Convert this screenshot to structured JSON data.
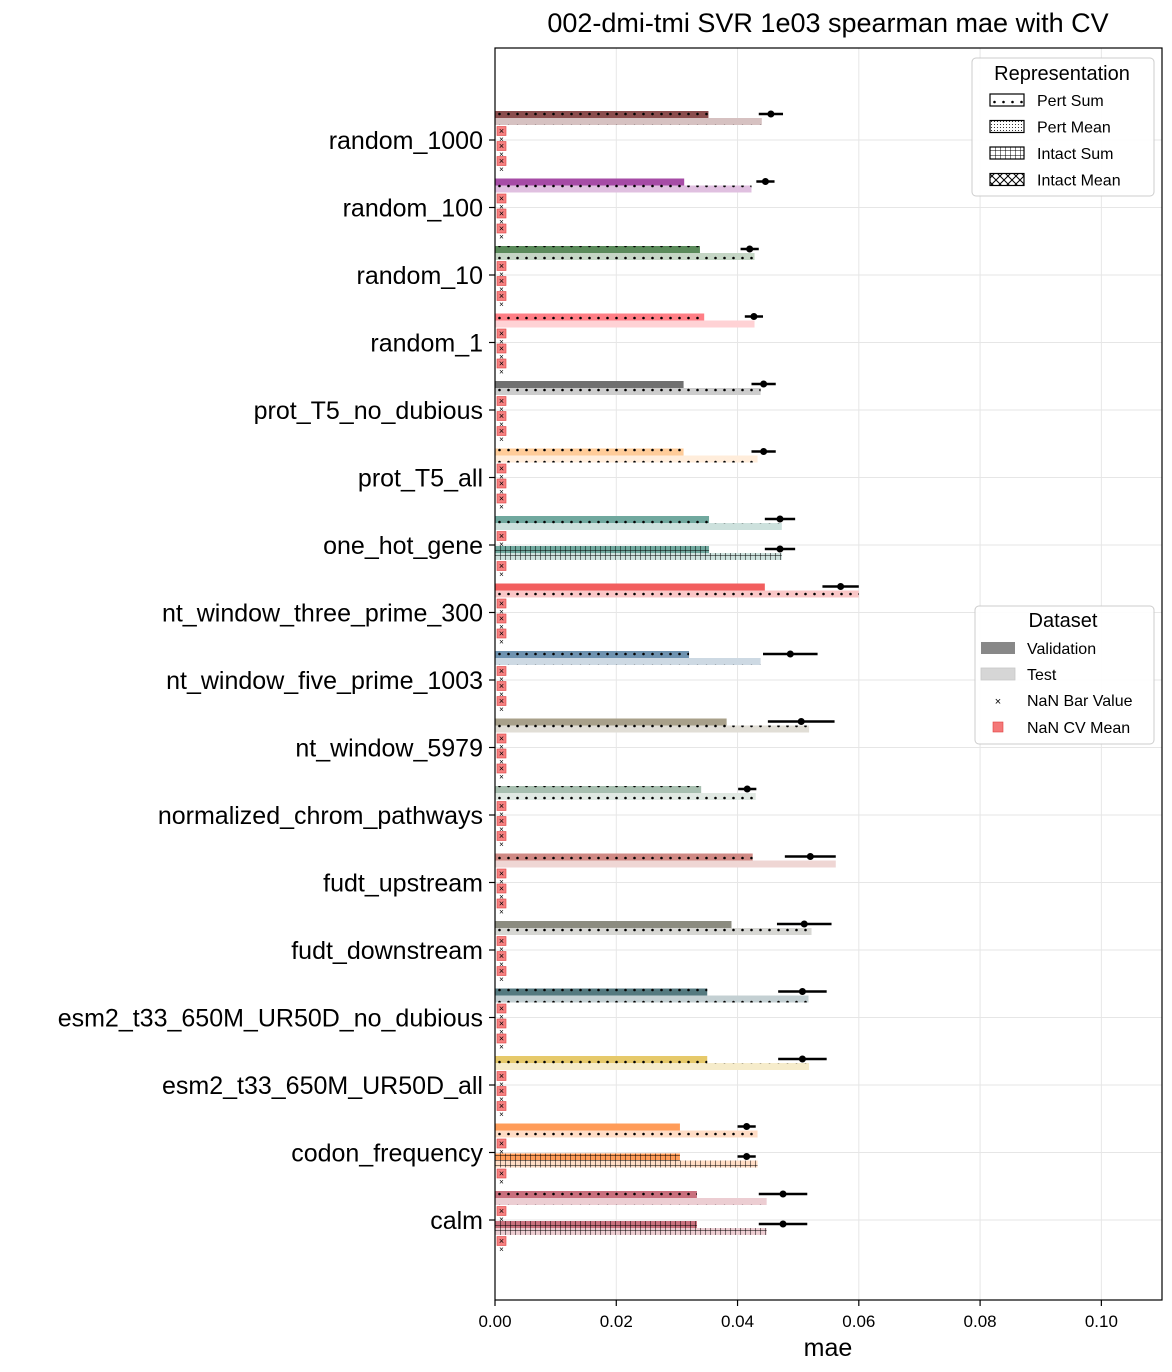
{
  "chart_data": {
    "type": "bar",
    "orientation": "horizontal",
    "title": "002-dmi-tmi SVR 1e03 spearman mae with CV",
    "xlabel": "mae",
    "ylabel": "",
    "xlim": [
      0,
      0.11
    ],
    "xticks": [
      "0.00",
      "0.02",
      "0.04",
      "0.06",
      "0.08",
      "0.10"
    ],
    "grid": true,
    "categories": [
      "random_1000",
      "random_100",
      "random_10",
      "random_1",
      "prot_T5_no_dubious",
      "prot_T5_all",
      "one_hot_gene",
      "nt_window_three_prime_300",
      "nt_window_five_prime_1003",
      "nt_window_5979",
      "normalized_chrom_pathways",
      "fudt_upstream",
      "fudt_downstream",
      "esm2_t33_650M_UR50D_no_dubious",
      "esm2_t33_650M_UR50D_all",
      "codon_frequency",
      "calm"
    ],
    "category_colors": [
      "#8b4d4d",
      "#a64ca6",
      "#5a8a5a",
      "#ff7f86",
      "#707070",
      "#ffcc99",
      "#70a89e",
      "#f25e5e",
      "#6f93b0",
      "#a8a08a",
      "#a8bfb0",
      "#d08a85",
      "#8c8c80",
      "#557a80",
      "#e6c96a",
      "#ff9c59",
      "#c9707d"
    ],
    "representations": [
      "Pert Sum",
      "Pert Mean",
      "Intact Sum",
      "Intact Mean"
    ],
    "series": [
      {
        "name": "Pert Sum",
        "validation": [
          0.0352,
          0.0312,
          0.0338,
          0.0345,
          0.0311,
          0.0311,
          0.0353,
          0.0445,
          0.032,
          0.0382,
          0.034,
          0.0425,
          0.039,
          0.035,
          0.035,
          0.0305,
          0.0333
        ],
        "test": [
          0.044,
          0.0423,
          0.0428,
          0.0428,
          0.0438,
          0.0433,
          0.0473,
          0.06,
          0.0438,
          0.0518,
          0.043,
          0.0562,
          0.0522,
          0.0517,
          0.0518,
          0.0433,
          0.0448
        ],
        "cv_mean": [
          0.0455,
          0.0446,
          0.042,
          0.0427,
          0.0443,
          0.0443,
          0.047,
          0.057,
          0.0487,
          0.0505,
          0.0416,
          0.052,
          0.051,
          0.0507,
          0.0507,
          0.0415,
          0.0475
        ],
        "cv_err": [
          0.002,
          0.0015,
          0.0015,
          0.0015,
          0.002,
          0.002,
          0.0025,
          0.003,
          0.0045,
          0.0055,
          0.0015,
          0.0042,
          0.0045,
          0.004,
          0.004,
          0.0015,
          0.004
        ]
      },
      {
        "name": "Pert Mean",
        "validation": [
          null,
          null,
          null,
          null,
          null,
          null,
          null,
          null,
          null,
          null,
          null,
          null,
          null,
          null,
          null,
          null,
          null
        ],
        "test": [
          null,
          null,
          null,
          null,
          null,
          null,
          null,
          null,
          null,
          null,
          null,
          null,
          null,
          null,
          null,
          null,
          null
        ],
        "cv_mean": [
          null,
          null,
          null,
          null,
          null,
          null,
          null,
          null,
          null,
          null,
          null,
          null,
          null,
          null,
          null,
          null,
          null
        ],
        "cv_err": [
          null,
          null,
          null,
          null,
          null,
          null,
          null,
          null,
          null,
          null,
          null,
          null,
          null,
          null,
          null,
          null,
          null
        ]
      },
      {
        "name": "Intact Sum",
        "validation": [
          null,
          null,
          null,
          null,
          null,
          null,
          0.0353,
          null,
          null,
          null,
          null,
          null,
          null,
          null,
          null,
          0.0305,
          0.0333
        ],
        "test": [
          null,
          null,
          null,
          null,
          null,
          null,
          0.0473,
          null,
          null,
          null,
          null,
          null,
          null,
          null,
          null,
          0.0433,
          0.0448
        ],
        "cv_mean": [
          null,
          null,
          null,
          null,
          null,
          null,
          0.047,
          null,
          null,
          null,
          null,
          null,
          null,
          null,
          null,
          0.0415,
          0.0475
        ],
        "cv_err": [
          null,
          null,
          null,
          null,
          null,
          null,
          0.0025,
          null,
          null,
          null,
          null,
          null,
          null,
          null,
          null,
          0.0015,
          0.004
        ]
      },
      {
        "name": "Intact Mean",
        "validation": [
          null,
          null,
          null,
          null,
          null,
          null,
          null,
          null,
          null,
          null,
          null,
          null,
          null,
          null,
          null,
          null,
          null
        ],
        "test": [
          null,
          null,
          null,
          null,
          null,
          null,
          null,
          null,
          null,
          null,
          null,
          null,
          null,
          null,
          null,
          null,
          null
        ],
        "cv_mean": [
          null,
          null,
          null,
          null,
          null,
          null,
          null,
          null,
          null,
          null,
          null,
          null,
          null,
          null,
          null,
          null,
          null
        ],
        "cv_err": [
          null,
          null,
          null,
          null,
          null,
          null,
          null,
          null,
          null,
          null,
          null,
          null,
          null,
          null,
          null,
          null,
          null
        ]
      }
    ],
    "legend_representation": {
      "title": "Representation",
      "position": "top-right",
      "entries": [
        "Pert Sum",
        "Pert Mean",
        "Intact Sum",
        "Intact Mean"
      ]
    },
    "legend_dataset": {
      "title": "Dataset",
      "position": "center-right",
      "entries": [
        "Validation",
        "Test",
        "NaN Bar Value",
        "NaN CV Mean"
      ]
    },
    "colors": {
      "validation_legend": "#888888",
      "test_legend": "#d6d6d6",
      "nan_marker": "#f26060",
      "cv_point": "#000000",
      "grid": "#e6e6e6"
    }
  }
}
